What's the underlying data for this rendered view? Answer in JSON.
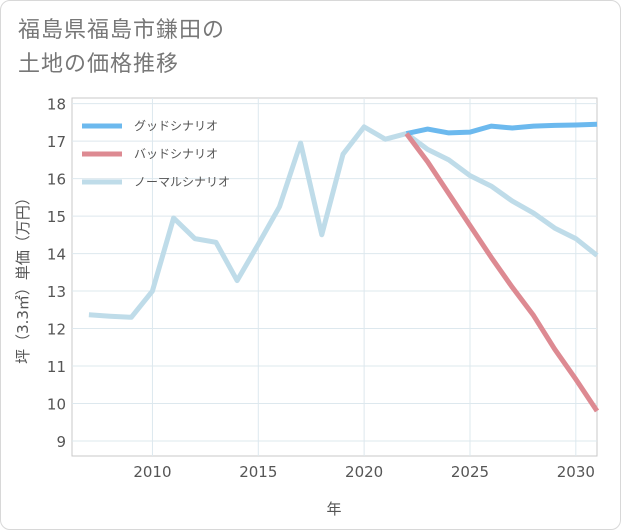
{
  "title": {
    "line1": "福島県福島市鎌田の",
    "line2": "土地の価格推移"
  },
  "chart_data": {
    "type": "line",
    "title": "福島県福島市鎌田の土地の価格推移",
    "xlabel": "年",
    "ylabel": "坪（3.3㎡）単価（万円）",
    "xlim": [
      2006.2,
      2031
    ],
    "ylim": [
      8.6,
      18.15
    ],
    "xticks": [
      2010,
      2015,
      2020,
      2025,
      2030
    ],
    "yticks": [
      9,
      10,
      11,
      12,
      13,
      14,
      15,
      16,
      17,
      18
    ],
    "grid": true,
    "legend_position": "top-left",
    "series": [
      {
        "name": "グッドシナリオ",
        "color": "#6cb9ee",
        "x": [
          2022,
          2023,
          2024,
          2025,
          2026,
          2027,
          2028,
          2029,
          2030,
          2031
        ],
        "values": [
          17.2,
          17.32,
          17.22,
          17.24,
          17.4,
          17.35,
          17.4,
          17.42,
          17.43,
          17.45
        ]
      },
      {
        "name": "バッドシナリオ",
        "color": "#dd8a92",
        "x": [
          2022,
          2023,
          2024,
          2025,
          2026,
          2027,
          2028,
          2029,
          2030,
          2031
        ],
        "values": [
          17.2,
          16.45,
          15.6,
          14.75,
          13.9,
          13.1,
          12.35,
          11.45,
          10.65,
          9.8
        ]
      },
      {
        "name": "ノーマルシナリオ",
        "color": "#bfdce9",
        "x": [
          2007,
          2008,
          2009,
          2010,
          2011,
          2012,
          2013,
          2014,
          2015,
          2016,
          2017,
          2018,
          2019,
          2020,
          2021,
          2022,
          2023,
          2024,
          2025,
          2026,
          2027,
          2028,
          2029,
          2030,
          2031
        ],
        "values": [
          12.37,
          12.33,
          12.3,
          13.0,
          14.95,
          14.4,
          14.3,
          13.28,
          14.25,
          15.25,
          16.95,
          14.5,
          16.65,
          17.38,
          17.05,
          17.2,
          16.78,
          16.5,
          16.08,
          15.8,
          15.4,
          15.08,
          14.68,
          14.4,
          13.95
        ]
      }
    ]
  }
}
